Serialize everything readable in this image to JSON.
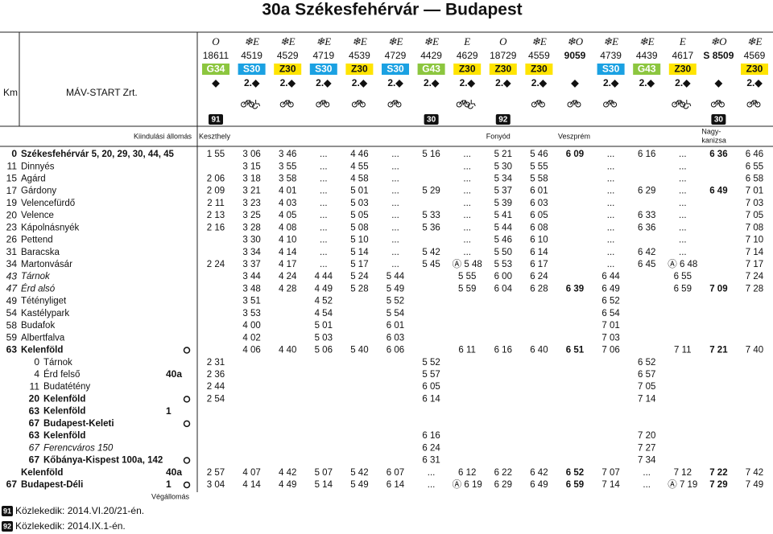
{
  "header": {
    "title": "30a Székesfehérvár — Budapest",
    "km_label": "Km",
    "operator": "MÁV-START Zrt.",
    "origin_label": "Kiindulási állomás",
    "end_label": "Végállomás"
  },
  "route_colors": {
    "G": "#8cc63f",
    "S": "#1ba1e2",
    "Z": "#ffe400"
  },
  "trains": [
    {
      "type": "O",
      "number": "18611",
      "route": "G34",
      "class": "◆",
      "marker": "91",
      "origin": [
        "Keszthely"
      ]
    },
    {
      "type": "❄E",
      "number": "4519",
      "route": "S30",
      "class": "2.◆"
    },
    {
      "type": "❄E",
      "number": "4529",
      "route": "Z30",
      "class": "2.◆"
    },
    {
      "type": "❄E",
      "number": "4719",
      "route": "S30",
      "class": "2.◆"
    },
    {
      "type": "❄E",
      "number": "4539",
      "route": "Z30",
      "class": "2.◆"
    },
    {
      "type": "❄E",
      "number": "4729",
      "route": "S30",
      "class": "2.◆"
    },
    {
      "type": "❄E",
      "number": "4429",
      "route": "G43",
      "class": "2.◆",
      "marker": "30"
    },
    {
      "type": "E",
      "number": "4629",
      "route": "Z30",
      "class": "2.◆"
    },
    {
      "type": "O",
      "number": "18729",
      "route": "Z30",
      "class": "2.◆",
      "marker": "92",
      "origin": [
        "Fonyód"
      ]
    },
    {
      "type": "❄E",
      "number": "4559",
      "route": "Z30",
      "class": "2.◆"
    },
    {
      "type": "❄O",
      "number": "9059",
      "class": "◆",
      "bold": true,
      "origin": [
        "Veszprém"
      ]
    },
    {
      "type": "❄E",
      "number": "4739",
      "route": "S30",
      "class": "2.◆"
    },
    {
      "type": "❄E",
      "number": "4439",
      "route": "G43",
      "class": "2.◆"
    },
    {
      "type": "E",
      "number": "4617",
      "route": "Z30",
      "class": "2.◆"
    },
    {
      "type": "❄O",
      "number": "S 8509",
      "class": "◆",
      "bold": true,
      "marker": "30",
      "origin": [
        "Nagy-",
        "kanizsa"
      ]
    },
    {
      "type": "❄E",
      "number": "4569",
      "route": "Z30",
      "class": "2.◆"
    }
  ],
  "rows": [
    {
      "km": "0",
      "name": "Székesfehérvár 5, 20, 29, 30, 44, 45",
      "style": "bold",
      "times": [
        "1 55",
        "3 06",
        "3 46",
        "...",
        "4 46",
        "...",
        "5 16",
        "...",
        "5 21",
        "5 46",
        "6 09",
        "...",
        "6 16",
        "...",
        "6 36",
        "6 46"
      ]
    },
    {
      "km": "11",
      "name": "Dinnyés",
      "times": [
        null,
        "3 15",
        "3 55",
        "...",
        "4 55",
        "...",
        null,
        "...",
        "5 30",
        "5 55",
        null,
        "...",
        null,
        "...",
        null,
        "6 55"
      ]
    },
    {
      "km": "15",
      "name": "Agárd",
      "times": [
        "2 06",
        "3 18",
        "3 58",
        "...",
        "4 58",
        "...",
        null,
        "...",
        "5 34",
        "5 58",
        null,
        "...",
        null,
        "...",
        null,
        "6 58"
      ]
    },
    {
      "km": "17",
      "name": "Gárdony",
      "times": [
        "2 09",
        "3 21",
        "4 01",
        "...",
        "5 01",
        "...",
        "5 29",
        "...",
        "5 37",
        "6 01",
        null,
        "...",
        "6 29",
        "...",
        "6 49",
        "7 01"
      ]
    },
    {
      "km": "19",
      "name": "Velencefürdő",
      "times": [
        "2 11",
        "3 23",
        "4 03",
        "...",
        "5 03",
        "...",
        null,
        "...",
        "5 39",
        "6 03",
        null,
        "...",
        null,
        "...",
        null,
        "7 03"
      ]
    },
    {
      "km": "20",
      "name": "Velence",
      "times": [
        "2 13",
        "3 25",
        "4 05",
        "...",
        "5 05",
        "...",
        "5 33",
        "...",
        "5 41",
        "6 05",
        null,
        "...",
        "6 33",
        "...",
        null,
        "7 05"
      ]
    },
    {
      "km": "23",
      "name": "Kápolnásnyék",
      "times": [
        "2 16",
        "3 28",
        "4 08",
        "...",
        "5 08",
        "...",
        "5 36",
        "...",
        "5 44",
        "6 08",
        null,
        "...",
        "6 36",
        "...",
        null,
        "7 08"
      ]
    },
    {
      "km": "26",
      "name": "Pettend",
      "times": [
        null,
        "3 30",
        "4 10",
        "...",
        "5 10",
        "...",
        null,
        "...",
        "5 46",
        "6 10",
        null,
        "...",
        null,
        "...",
        null,
        "7 10"
      ]
    },
    {
      "km": "31",
      "name": "Baracska",
      "times": [
        null,
        "3 34",
        "4 14",
        "...",
        "5 14",
        "...",
        "5 42",
        "...",
        "5 50",
        "6 14",
        null,
        "...",
        "6 42",
        "...",
        null,
        "7 14"
      ]
    },
    {
      "km": "34",
      "name": "Martonvásár",
      "times": [
        "2 24",
        "3 37",
        "4 17",
        "...",
        "5 17",
        "...",
        "5 45",
        "Ⓐ 5 48",
        "5 53",
        "6 17",
        null,
        "...",
        "6 45",
        "Ⓐ 6 48",
        null,
        "7 17"
      ]
    },
    {
      "km": "43",
      "name": "Tárnok",
      "style": "italic",
      "times": [
        null,
        "3 44",
        "4 24",
        "4 44",
        "5 24",
        "5 44",
        null,
        "5 55",
        "6 00",
        "6 24",
        null,
        "6 44",
        null,
        "6 55",
        null,
        "7 24"
      ]
    },
    {
      "km": "47",
      "name": "Érd alsó",
      "style": "italic",
      "times": [
        null,
        "3 48",
        "4 28",
        "4 49",
        "5 28",
        "5 49",
        null,
        "5 59",
        "6 04",
        "6 28",
        "6 39",
        "6 49",
        null,
        "6 59",
        "7 09",
        "7 28"
      ]
    },
    {
      "km": "49",
      "name": "Tétényliget",
      "times": [
        null,
        "3 51",
        null,
        "4 52",
        null,
        "5 52",
        null,
        null,
        null,
        null,
        null,
        "6 52",
        null,
        null,
        null,
        null
      ]
    },
    {
      "km": "54",
      "name": "Kastélypark",
      "times": [
        null,
        "3 53",
        null,
        "4 54",
        null,
        "5 54",
        null,
        null,
        null,
        null,
        null,
        "6 54",
        null,
        null,
        null,
        null
      ]
    },
    {
      "km": "58",
      "name": "Budafok",
      "times": [
        null,
        "4 00",
        null,
        "5 01",
        null,
        "6 01",
        null,
        null,
        null,
        null,
        null,
        "7 01",
        null,
        null,
        null,
        null
      ]
    },
    {
      "km": "59",
      "name": "Albertfalva",
      "times": [
        null,
        "4 02",
        null,
        "5 03",
        null,
        "6 03",
        null,
        null,
        null,
        null,
        null,
        "7 03",
        null,
        null,
        null,
        null
      ]
    },
    {
      "km": "63",
      "name": "Kelenföld",
      "style": "bold",
      "circle": true,
      "times": [
        null,
        "4 06",
        "4 40",
        "5 06",
        "5 40",
        "6 06",
        null,
        "6 11",
        "6 16",
        "6 40",
        "6 51",
        "7 06",
        null,
        "7 11",
        "7 21",
        "7 40"
      ]
    },
    {
      "km": "0",
      "name": "Tárnok",
      "indent": true,
      "times": [
        "2 31",
        null,
        null,
        null,
        null,
        null,
        "5 52",
        null,
        null,
        null,
        null,
        null,
        "6 52",
        null,
        null,
        null
      ]
    },
    {
      "km": "4",
      "name": "Érd felső",
      "indent": true,
      "ref": "40a",
      "times": [
        "2 36",
        null,
        null,
        null,
        null,
        null,
        "5 57",
        null,
        null,
        null,
        null,
        null,
        "6 57",
        null,
        null,
        null
      ]
    },
    {
      "km": "11",
      "name": "Budatétény",
      "indent": true,
      "times": [
        "2 44",
        null,
        null,
        null,
        null,
        null,
        "6 05",
        null,
        null,
        null,
        null,
        null,
        "7 05",
        null,
        null,
        null
      ]
    },
    {
      "km": "20",
      "name": "Kelenföld",
      "indent": true,
      "style": "bold",
      "circle": true,
      "times": [
        "2 54",
        null,
        null,
        null,
        null,
        null,
        "6 14",
        null,
        null,
        null,
        null,
        null,
        "7 14",
        null,
        null,
        null
      ]
    },
    {
      "km": "63",
      "name": "Kelenföld",
      "indent": true,
      "style": "bold",
      "ref": "1",
      "times": [
        null,
        null,
        null,
        null,
        null,
        null,
        null,
        null,
        null,
        null,
        null,
        null,
        null,
        null,
        null,
        null
      ]
    },
    {
      "km": "67",
      "name": "Budapest-Keleti",
      "indent": true,
      "style": "bold",
      "circle": true,
      "times": [
        null,
        null,
        null,
        null,
        null,
        null,
        null,
        null,
        null,
        null,
        null,
        null,
        null,
        null,
        null,
        null
      ]
    },
    {
      "km": "63",
      "name": "Kelenföld",
      "indent": true,
      "style": "bold",
      "times": [
        null,
        null,
        null,
        null,
        null,
        null,
        "6 16",
        null,
        null,
        null,
        null,
        null,
        "7 20",
        null,
        null,
        null
      ]
    },
    {
      "km": "67",
      "name": "Ferencváros 150",
      "indent": true,
      "style": "italic",
      "times": [
        null,
        null,
        null,
        null,
        null,
        null,
        "6 24",
        null,
        null,
        null,
        null,
        null,
        "7 27",
        null,
        null,
        null
      ]
    },
    {
      "km": "67",
      "name": "Kőbánya-Kispest 100a, 142",
      "indent": true,
      "style": "bold",
      "circle": true,
      "times": [
        null,
        null,
        null,
        null,
        null,
        null,
        "6 31",
        null,
        null,
        null,
        null,
        null,
        "7 34",
        null,
        null,
        null
      ]
    },
    {
      "name": "Kelenföld",
      "style": "bold",
      "ref": "40a",
      "times": [
        "2 57",
        "4 07",
        "4 42",
        "5 07",
        "5 42",
        "6 07",
        "...",
        "6 12",
        "6 22",
        "6 42",
        "6 52",
        "7 07",
        "...",
        "7 12",
        "7 22",
        "7 42"
      ]
    },
    {
      "km": "67",
      "name": "Budapest-Déli",
      "style": "bold",
      "ref": "1",
      "circle": true,
      "times": [
        "3 04",
        "4 14",
        "4 49",
        "5 14",
        "5 49",
        "6 14",
        "...",
        "Ⓐ 6 19",
        "6 29",
        "6 49",
        "6 59",
        "7 14",
        "...",
        "Ⓐ 7 19",
        "7 29",
        "7 49"
      ]
    }
  ],
  "footnotes": [
    {
      "marker": "91",
      "text": "Közlekedik: 2014.VI.20/21-én."
    },
    {
      "marker": "92",
      "text": "Közlekedik: 2014.IX.1-én."
    }
  ]
}
